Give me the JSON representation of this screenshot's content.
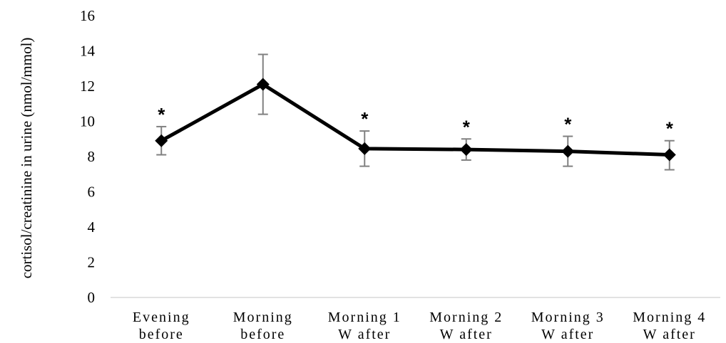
{
  "chart_data": {
    "type": "line",
    "title": "",
    "xlabel": "",
    "ylabel": "cortisol/creatinine in urine (nmol/mmol)",
    "ylim": [
      0,
      16
    ],
    "yticks": [
      "0",
      "2",
      "4",
      "6",
      "8",
      "10",
      "12",
      "14",
      "16"
    ],
    "grid": false,
    "legend": "none",
    "categories": [
      [
        "Evening",
        "before"
      ],
      [
        "Morning",
        "before"
      ],
      [
        "Morning 1",
        "W after"
      ],
      [
        "Morning 2",
        "W after"
      ],
      [
        "Morning 3",
        "W after"
      ],
      [
        "Morning 4",
        "W after"
      ]
    ],
    "series": [
      {
        "values": [
          8.9,
          12.1,
          8.45,
          8.4,
          8.3,
          8.1
        ],
        "error_low": [
          0.8,
          1.7,
          1.0,
          0.6,
          0.85,
          0.85
        ],
        "error_high": [
          0.8,
          1.7,
          1.0,
          0.6,
          0.85,
          0.8
        ],
        "significance": [
          "*",
          "",
          "*",
          "*",
          "*",
          "*"
        ],
        "color": "#000000",
        "marker": "diamond"
      }
    ],
    "error_bar_color": "#808080"
  }
}
